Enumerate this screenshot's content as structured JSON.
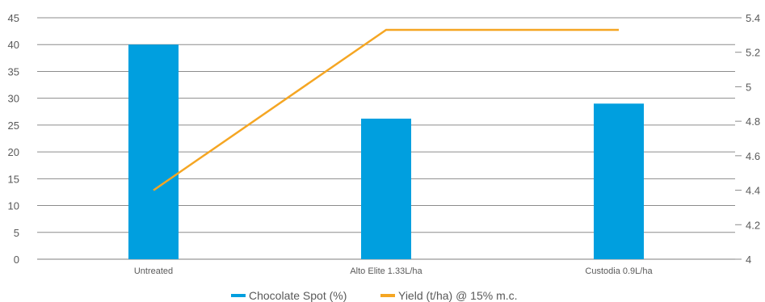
{
  "chart_data": {
    "type": "bar",
    "categories": [
      "Untreated",
      "Alto Elite 1.33L/ha",
      "Custodia 0.9L/ha"
    ],
    "series": [
      {
        "name": "Chocolate Spot (%)",
        "type": "bar",
        "axis": "left",
        "values": [
          40,
          26.2,
          29
        ],
        "color": "#009fdf"
      },
      {
        "name": "Yield (t/ha) @ 15% m.c.",
        "type": "line",
        "axis": "right",
        "values": [
          4.4,
          5.33,
          5.33
        ],
        "color": "#f5a623"
      }
    ],
    "y_left": {
      "min": 0,
      "max": 45,
      "step": 5,
      "ticks": [
        "0",
        "5",
        "10",
        "15",
        "20",
        "25",
        "30",
        "35",
        "40",
        "45"
      ]
    },
    "y_right": {
      "min": 4,
      "max": 5.4,
      "step": 0.2,
      "ticks": [
        "4",
        "4.2",
        "4.4",
        "4.6",
        "4.8",
        "5",
        "5.2",
        "5.4"
      ]
    },
    "grid": true,
    "legend": "bottom"
  }
}
